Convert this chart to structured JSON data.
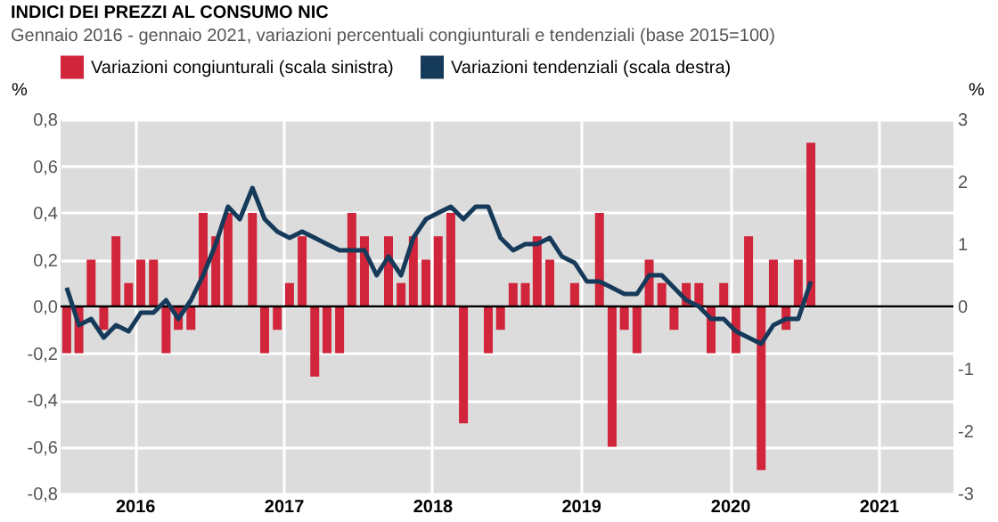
{
  "chart_data": {
    "type": "bar",
    "title": "INDICI DEI PREZZI AL CONSUMO NIC",
    "subtitle": "Gennaio 2016 - gennaio 2021, variazioni percentuali congiunturali e tendenziali (base 2015=100)",
    "ylabel": "%",
    "y2label": "%",
    "x": [
      "2016-01-16",
      "2016-02-15",
      "2016-03-16",
      "2016-04-16",
      "2016-05-16",
      "2016-06-16",
      "2016-07-16",
      "2016-08-16",
      "2016-09-16",
      "2016-10-16",
      "2016-11-16",
      "2016-12-16",
      "2017-01-16",
      "2017-02-15",
      "2017-03-16",
      "2017-04-16",
      "2017-05-16",
      "2017-06-16",
      "2017-07-16",
      "2017-08-16",
      "2017-09-16",
      "2017-10-16",
      "2017-11-16",
      "2017-12-16",
      "2018-01-16",
      "2018-02-15",
      "2018-03-16",
      "2018-04-16",
      "2018-05-16",
      "2018-06-16",
      "2018-07-16",
      "2018-08-16",
      "2018-09-16",
      "2018-10-16",
      "2018-11-16",
      "2018-12-16",
      "2019-01-16",
      "2019-02-15",
      "2019-03-16",
      "2019-04-16",
      "2019-05-16",
      "2019-06-16",
      "2019-07-16",
      "2019-08-16",
      "2019-09-16",
      "2019-10-16",
      "2019-11-16",
      "2019-12-16",
      "2020-01-16",
      "2020-02-15",
      "2020-03-16",
      "2020-04-16",
      "2020-05-16",
      "2020-06-16",
      "2020-07-16",
      "2020-08-16",
      "2020-09-16",
      "2020-10-16",
      "2020-11-16",
      "2020-12-16",
      "2021-01-16"
    ],
    "series": [
      {
        "name": "Variazioni congiunturali (scala sinistra)",
        "color": "#d0253a",
        "values": [
          -0.2,
          -0.2,
          0.2,
          -0.1,
          0.3,
          0.1,
          0.2,
          0.2,
          -0.2,
          -0.1,
          -0.1,
          0.4,
          0.3,
          0.4,
          0.0,
          0.4,
          -0.2,
          -0.1,
          0.1,
          0.3,
          -0.3,
          -0.2,
          -0.2,
          0.4,
          0.3,
          0.0,
          0.3,
          0.1,
          0.3,
          0.2,
          0.3,
          0.4,
          -0.5,
          0.0,
          -0.2,
          -0.1,
          0.1,
          0.1,
          0.3,
          0.2,
          0.0,
          0.1,
          0.0,
          0.4,
          -0.6,
          -0.1,
          -0.2,
          0.2,
          0.1,
          -0.1,
          0.1,
          0.1,
          -0.2,
          0.1,
          -0.2,
          0.3,
          -0.7,
          0.2,
          -0.1,
          0.2,
          0.7
        ]
      },
      {
        "name": "Variazioni tendenziali (scala destra)",
        "type": "line",
        "axis": "y2",
        "color": "#163a5a",
        "values": [
          0.3,
          -0.3,
          -0.2,
          -0.5,
          -0.3,
          -0.4,
          -0.1,
          -0.1,
          0.1,
          -0.2,
          0.1,
          0.5,
          1.0,
          1.6,
          1.4,
          1.9,
          1.4,
          1.2,
          1.1,
          1.2,
          1.1,
          1.0,
          0.9,
          0.9,
          0.9,
          0.5,
          0.8,
          0.5,
          1.1,
          1.4,
          1.5,
          1.6,
          1.4,
          1.6,
          1.6,
          1.1,
          0.9,
          1.0,
          1.0,
          1.1,
          0.8,
          0.7,
          0.4,
          0.4,
          0.3,
          0.2,
          0.2,
          0.5,
          0.5,
          0.3,
          0.1,
          0.0,
          -0.2,
          -0.2,
          -0.4,
          -0.5,
          -0.6,
          -0.3,
          -0.2,
          -0.2,
          0.4
        ]
      }
    ],
    "xlim": [
      "2016-01",
      "2022-01"
    ],
    "xticks": [
      {
        "value": "2016-07",
        "label": "2016"
      },
      {
        "value": "2017-07",
        "label": "2017"
      },
      {
        "value": "2018-07",
        "label": "2018"
      },
      {
        "value": "2019-07",
        "label": "2019"
      },
      {
        "value": "2020-07",
        "label": "2020"
      },
      {
        "value": "2021-07",
        "label": "2021"
      }
    ],
    "ylim": [
      -0.8,
      0.8
    ],
    "yticks": [
      {
        "value": -0.8,
        "label": "-0,8"
      },
      {
        "value": -0.6,
        "label": "-0,6"
      },
      {
        "value": -0.4,
        "label": "-0,4"
      },
      {
        "value": -0.2,
        "label": "-0,2"
      },
      {
        "value": 0,
        "label": "0,0"
      },
      {
        "value": 0.2,
        "label": "0,2"
      },
      {
        "value": 0.4,
        "label": "0,4"
      },
      {
        "value": 0.6,
        "label": "0,6"
      },
      {
        "value": 0.8,
        "label": "0,8"
      }
    ],
    "y2lim": [
      -3,
      3
    ],
    "y2ticks": [
      -3,
      -2,
      -1,
      0,
      1,
      2,
      3
    ],
    "ref_lines": [
      {
        "axis": "y",
        "value": 0,
        "color": "#000000"
      }
    ],
    "grid": true,
    "legend": "top"
  }
}
